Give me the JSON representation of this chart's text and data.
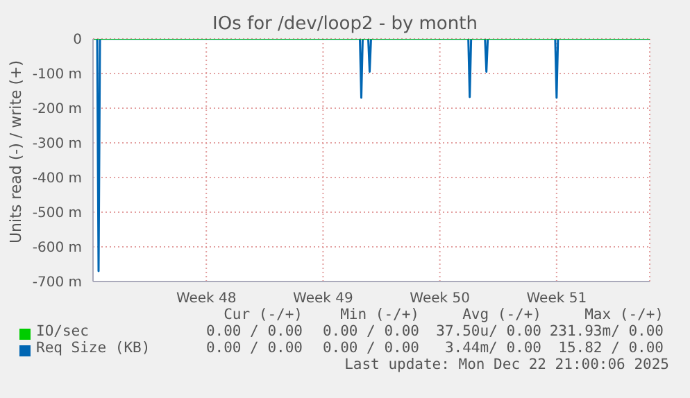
{
  "chart_data": {
    "type": "line",
    "title": "IOs for /dev/loop2 - by month",
    "ylabel": "Units read (-) / write (+)",
    "xlim": [
      "2025-11-20T17:00",
      "2025-12-24T02:00"
    ],
    "xticks": [
      {
        "value": "2025-11-27T12:00",
        "label": "Week 48"
      },
      {
        "value": "2025-12-04T12:00",
        "label": "Week 49"
      },
      {
        "value": "2025-12-11T12:00",
        "label": "Week 50"
      },
      {
        "value": "2025-12-18T12:00",
        "label": "Week 51"
      }
    ],
    "ylim": [
      -700,
      0
    ],
    "yticks": [
      {
        "value": -700,
        "label": "-700 m"
      },
      {
        "value": -600,
        "label": "-600 m"
      },
      {
        "value": -500,
        "label": "-500 m"
      },
      {
        "value": -400,
        "label": "-400 m"
      },
      {
        "value": -300,
        "label": "-300 m"
      },
      {
        "value": -200,
        "label": "-200 m"
      },
      {
        "value": -100,
        "label": "-100 m"
      },
      0
    ],
    "grid": true,
    "legend": "bottom",
    "series": [
      {
        "name": "IO/sec",
        "color": "#00cc00",
        "x": [
          "2025-11-20T17:00",
          "2025-12-24T02:00"
        ],
        "values": [
          0,
          0
        ]
      },
      {
        "name": "Req Size (KB)",
        "color": "#0066b3",
        "x": [
          "2025-11-20T17:00",
          "2025-11-20T23:00",
          "2025-11-21T01:00",
          "2025-11-21T03:00",
          "2025-12-06T17:00",
          "2025-12-06T19:00",
          "2025-12-06T21:00",
          "2025-12-07T05:00",
          "2025-12-07T07:00",
          "2025-12-07T09:00",
          "2025-12-13T05:00",
          "2025-12-13T07:00",
          "2025-12-13T09:00",
          "2025-12-14T05:00",
          "2025-12-14T07:00",
          "2025-12-14T09:00",
          "2025-12-18T10:00",
          "2025-12-18T12:00",
          "2025-12-18T14:00",
          "2025-12-24T02:00"
        ],
        "values": [
          0,
          0,
          -670,
          0,
          0,
          -170,
          0,
          0,
          -95,
          0,
          0,
          -168,
          0,
          0,
          -95,
          0,
          0,
          -170,
          0,
          0
        ]
      }
    ],
    "annotations": [
      "Cur (-/+)",
      "Min (-/+)",
      "Avg (-/+)",
      "Max (-/+)",
      "0.00 / 0.00",
      "0.00 / 0.00",
      "37.50u/ 0.00",
      "231.93m/ 0.00",
      "0.00 / 0.00",
      "0.00 / 0.00",
      "3.44m/ 0.00",
      "15.82 / 0.00",
      "Last update: Mon Dec 22 21:00:06 2025"
    ]
  }
}
